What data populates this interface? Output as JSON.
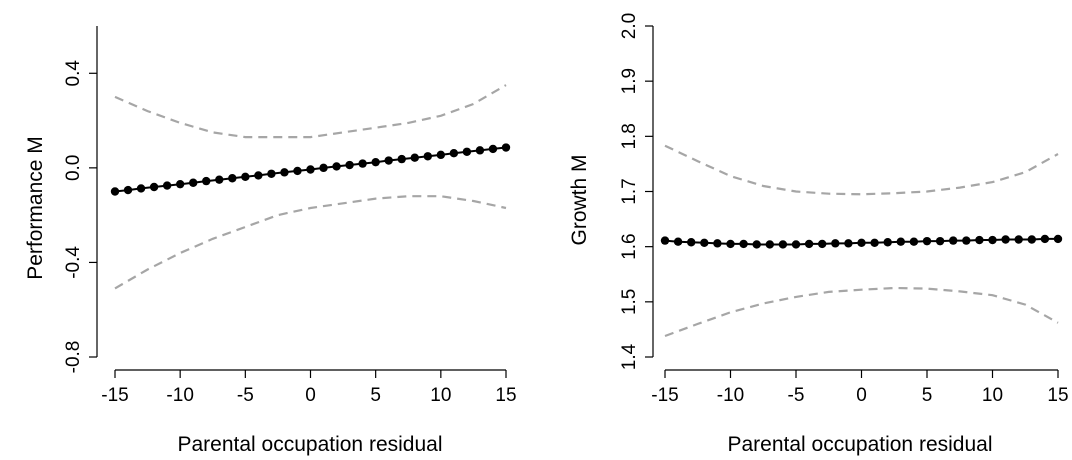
{
  "chart_data": [
    {
      "type": "line",
      "xlabel": "Parental occupation residual",
      "ylabel": "Performance M",
      "xlim": [
        -15,
        15
      ],
      "ylim": [
        -0.8,
        0.4
      ],
      "xticks": [
        -15,
        -10,
        -5,
        0,
        5,
        10,
        15
      ],
      "xtick_labels": [
        "-15",
        "-10",
        "-5",
        "0",
        "5",
        "10",
        "15"
      ],
      "yticks": [
        -0.8,
        -0.4,
        0.0,
        0.4
      ],
      "ytick_labels": [
        "-0.8",
        "-0.4",
        "0.0",
        "0.4"
      ],
      "ymax_axis": 0.6,
      "grid": false,
      "legend": "none",
      "estimate": {
        "x": [
          -15,
          -14,
          -13,
          -12,
          -11,
          -10,
          -9,
          -8,
          -7,
          -6,
          -5,
          -4,
          -3,
          -2,
          -1,
          0,
          1,
          2,
          3,
          4,
          5,
          6,
          7,
          8,
          9,
          10,
          11,
          12,
          13,
          14,
          15
        ],
        "y": [
          -0.1,
          -0.094,
          -0.087,
          -0.081,
          -0.075,
          -0.069,
          -0.063,
          -0.056,
          -0.05,
          -0.044,
          -0.038,
          -0.032,
          -0.025,
          -0.019,
          -0.013,
          -0.007,
          0.0,
          0.006,
          0.012,
          0.018,
          0.024,
          0.031,
          0.037,
          0.043,
          0.049,
          0.055,
          0.062,
          0.068,
          0.074,
          0.08,
          0.086
        ]
      },
      "ci_upper": {
        "x": [
          -15,
          -12.5,
          -10,
          -7.5,
          -5,
          -2.5,
          0,
          2.5,
          5,
          7.5,
          10,
          12.5,
          15
        ],
        "y": [
          0.3,
          0.24,
          0.19,
          0.15,
          0.13,
          0.13,
          0.13,
          0.15,
          0.17,
          0.19,
          0.22,
          0.27,
          0.35
        ]
      },
      "ci_lower": {
        "x": [
          -15,
          -12.5,
          -10,
          -7.5,
          -5,
          -2.5,
          0,
          2.5,
          5,
          7.5,
          10,
          12.5,
          15
        ],
        "y": [
          -0.51,
          -0.43,
          -0.36,
          -0.3,
          -0.25,
          -0.2,
          -0.17,
          -0.15,
          -0.13,
          -0.12,
          -0.12,
          -0.14,
          -0.17
        ]
      }
    },
    {
      "type": "line",
      "xlabel": "Parental occupation residual",
      "ylabel": "Growth M",
      "xlim": [
        -15,
        15
      ],
      "ylim": [
        1.4,
        2.0
      ],
      "xticks": [
        -15,
        -10,
        -5,
        0,
        5,
        10,
        15
      ],
      "xtick_labels": [
        "-15",
        "-10",
        "-5",
        "0",
        "5",
        "10",
        "15"
      ],
      "yticks": [
        1.4,
        1.5,
        1.6,
        1.7,
        1.8,
        1.9,
        2.0
      ],
      "ytick_labels": [
        "1.4",
        "1.5",
        "1.6",
        "1.7",
        "1.8",
        "1.9",
        "2.0"
      ],
      "ymax_axis": 2.0,
      "grid": false,
      "legend": "none",
      "estimate": {
        "x": [
          -15,
          -14,
          -13,
          -12,
          -11,
          -10,
          -9,
          -8,
          -7,
          -6,
          -5,
          -4,
          -3,
          -2,
          -1,
          0,
          1,
          2,
          3,
          4,
          5,
          6,
          7,
          8,
          9,
          10,
          11,
          12,
          13,
          14,
          15
        ],
        "y": [
          1.611,
          1.609,
          1.608,
          1.607,
          1.606,
          1.605,
          1.605,
          1.604,
          1.604,
          1.604,
          1.604,
          1.605,
          1.605,
          1.606,
          1.606,
          1.607,
          1.607,
          1.608,
          1.609,
          1.609,
          1.61,
          1.61,
          1.611,
          1.611,
          1.612,
          1.612,
          1.613,
          1.613,
          1.613,
          1.614,
          1.614
        ]
      },
      "ci_upper": {
        "x": [
          -15,
          -12.5,
          -10,
          -7.5,
          -5,
          -2.5,
          0,
          2.5,
          5,
          7.5,
          10,
          12.5,
          15
        ],
        "y": [
          1.783,
          1.755,
          1.728,
          1.71,
          1.7,
          1.696,
          1.695,
          1.697,
          1.7,
          1.707,
          1.717,
          1.735,
          1.768
        ]
      },
      "ci_lower": {
        "x": [
          -15,
          -12.5,
          -10,
          -7.5,
          -5,
          -2.5,
          0,
          2.5,
          5,
          7.5,
          10,
          12.5,
          15
        ],
        "y": [
          1.438,
          1.46,
          1.481,
          1.497,
          1.509,
          1.518,
          1.522,
          1.525,
          1.524,
          1.519,
          1.512,
          1.495,
          1.462
        ]
      }
    }
  ]
}
